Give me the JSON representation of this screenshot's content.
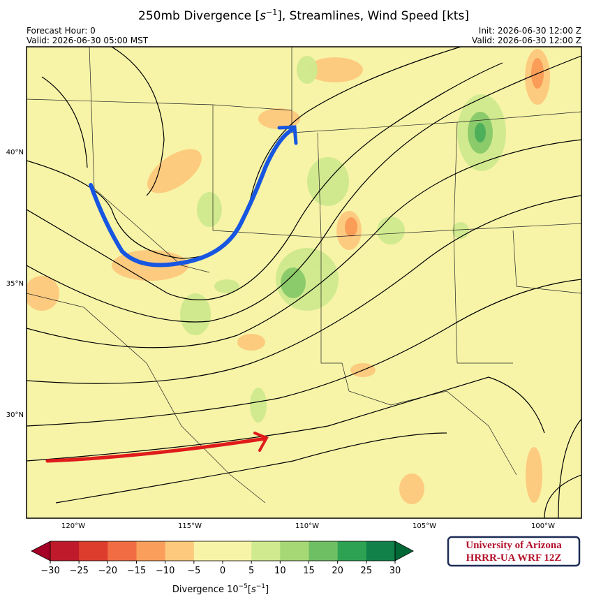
{
  "header": {
    "title": {
      "text": "250mb Divergence [",
      "unit": "s",
      "exponent": "−1",
      "suffix": "], Streamlines, Wind Speed [kts]"
    },
    "left": [
      "Forecast Hour: 0",
      "Valid: 2026-06-30 05:00 MST"
    ],
    "right": [
      "Init: 2026-06-30 12:00 Z",
      "Valid: 2026-06-30 12:00 Z"
    ]
  },
  "map": {
    "lon_labels": [
      "120°W",
      "115°W",
      "110°W",
      "105°W",
      "100°W"
    ],
    "lat_labels": [
      "40°N",
      "35°N",
      "30°N"
    ]
  },
  "colorbar": {
    "ticks": [
      "−30",
      "−25",
      "−20",
      "−15",
      "−10",
      "−5",
      "0",
      "5",
      "10",
      "15",
      "20",
      "25",
      "30"
    ],
    "label": {
      "text": "Divergence 10",
      "exponent": "−5",
      "open": "[",
      "unit": "s",
      "unit_exponent": "−1",
      "close": "]"
    }
  },
  "logo": {
    "line1": "University of Arizona",
    "line2": "HRRR-UA WRF 12Z"
  }
}
